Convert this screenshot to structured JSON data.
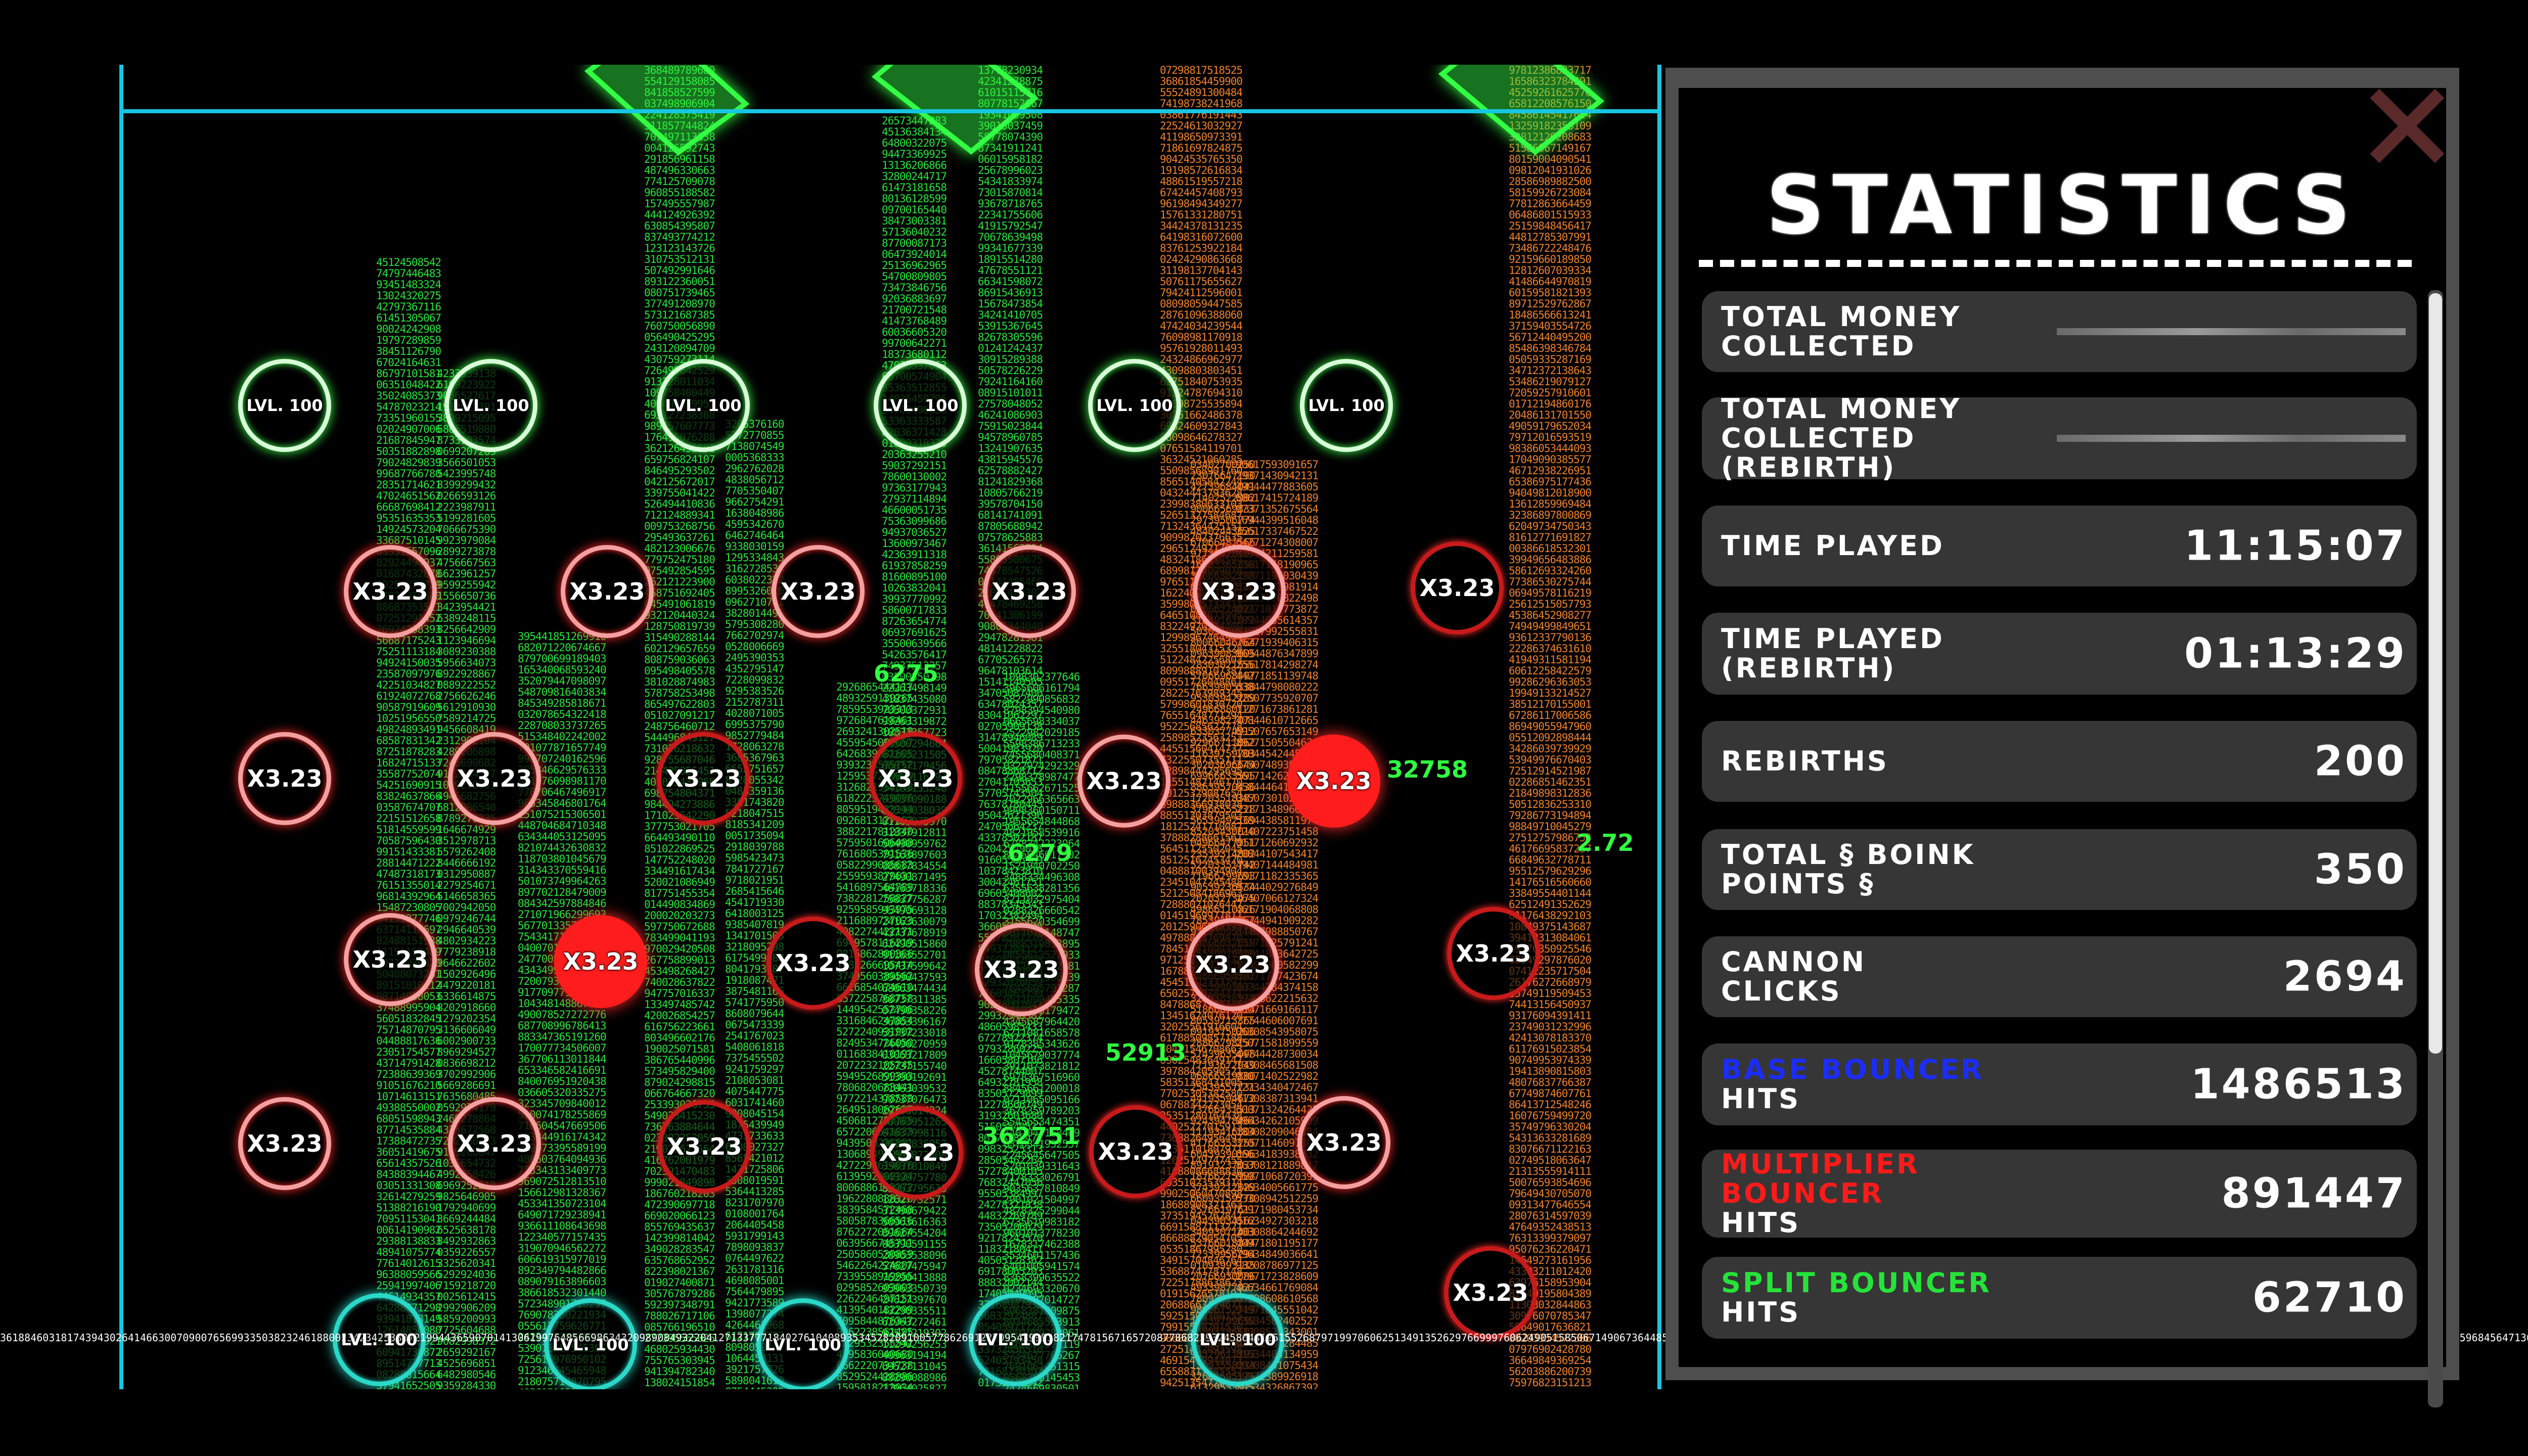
{
  "field": {
    "peg_level_label": "LVL. 100",
    "peg_multiplier_label": "X3.23",
    "floating_numbers": [
      "6275",
      "32758",
      "6279",
      "52913",
      "362751",
      "2.72"
    ],
    "colors": {
      "border": "#16c7e4",
      "green": "#26e33a",
      "orange": "#f0802a",
      "red": "#ff1c1c",
      "cyan": "#2ad8c8"
    }
  },
  "statistics": {
    "title": "STATISTICS",
    "close_icon": "close-x-icon",
    "rows": [
      {
        "label": "TOTAL MONEY COLLECTED",
        "value": ""
      },
      {
        "label": "TOTAL MONEY COLLECTED (REBIRTH)",
        "value": ""
      },
      {
        "label": "TIME PLAYED",
        "value": "11:15:07"
      },
      {
        "label": "TIME PLAYED (REBIRTH)",
        "value": "01:13:29"
      },
      {
        "label": "REBIRTHS",
        "value": "200"
      },
      {
        "label": "TOTAL § BOINK POINTS §",
        "value": "350"
      },
      {
        "label": "CANNON CLICKS",
        "value": "2694"
      },
      {
        "label_colored": "BASE BOUNCER",
        "label_rest": "HITS",
        "value": "1486513"
      },
      {
        "label_colored": "MULTIPLIER BOUNCER",
        "label_rest": "HITS",
        "value": "891447"
      },
      {
        "label_colored": "SPLIT BOUNCER",
        "label_rest": "HITS",
        "value": "62710"
      }
    ]
  }
}
